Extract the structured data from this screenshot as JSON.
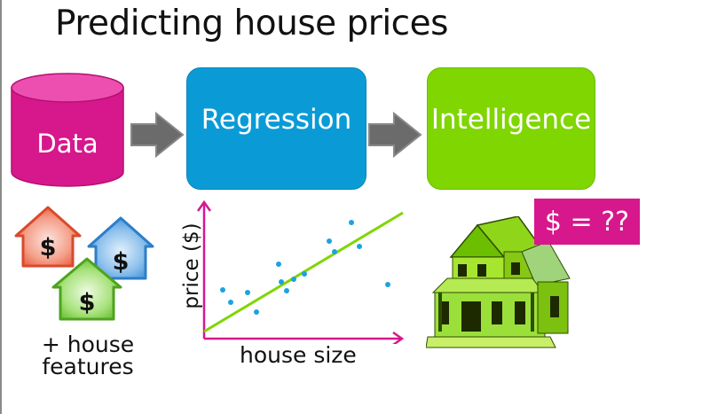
{
  "slide": {
    "title": "Predicting house prices"
  },
  "pipeline": {
    "data_label": "Data",
    "regression_label": "Regression",
    "intelligence_label": "Intelligence"
  },
  "houses": {
    "dollar_symbol": "$",
    "caption_line1": "+ house",
    "caption_line2": "features"
  },
  "chart": {
    "x_label": "house size",
    "y_label": "price ($)"
  },
  "prediction": {
    "label": "$ = ??"
  },
  "colors": {
    "data_cylinder": "#d6188c",
    "regression_box": "#0a9bd6",
    "intelligence_box": "#7fd600",
    "arrow_gray": "#6b6b6b",
    "axis_magenta": "#d6188c",
    "fit_line": "#7fd600",
    "points": "#1ca2e0"
  },
  "icons": [
    "cylinder-icon",
    "arrow-right-icon",
    "house-icon",
    "dollar-icon"
  ]
}
